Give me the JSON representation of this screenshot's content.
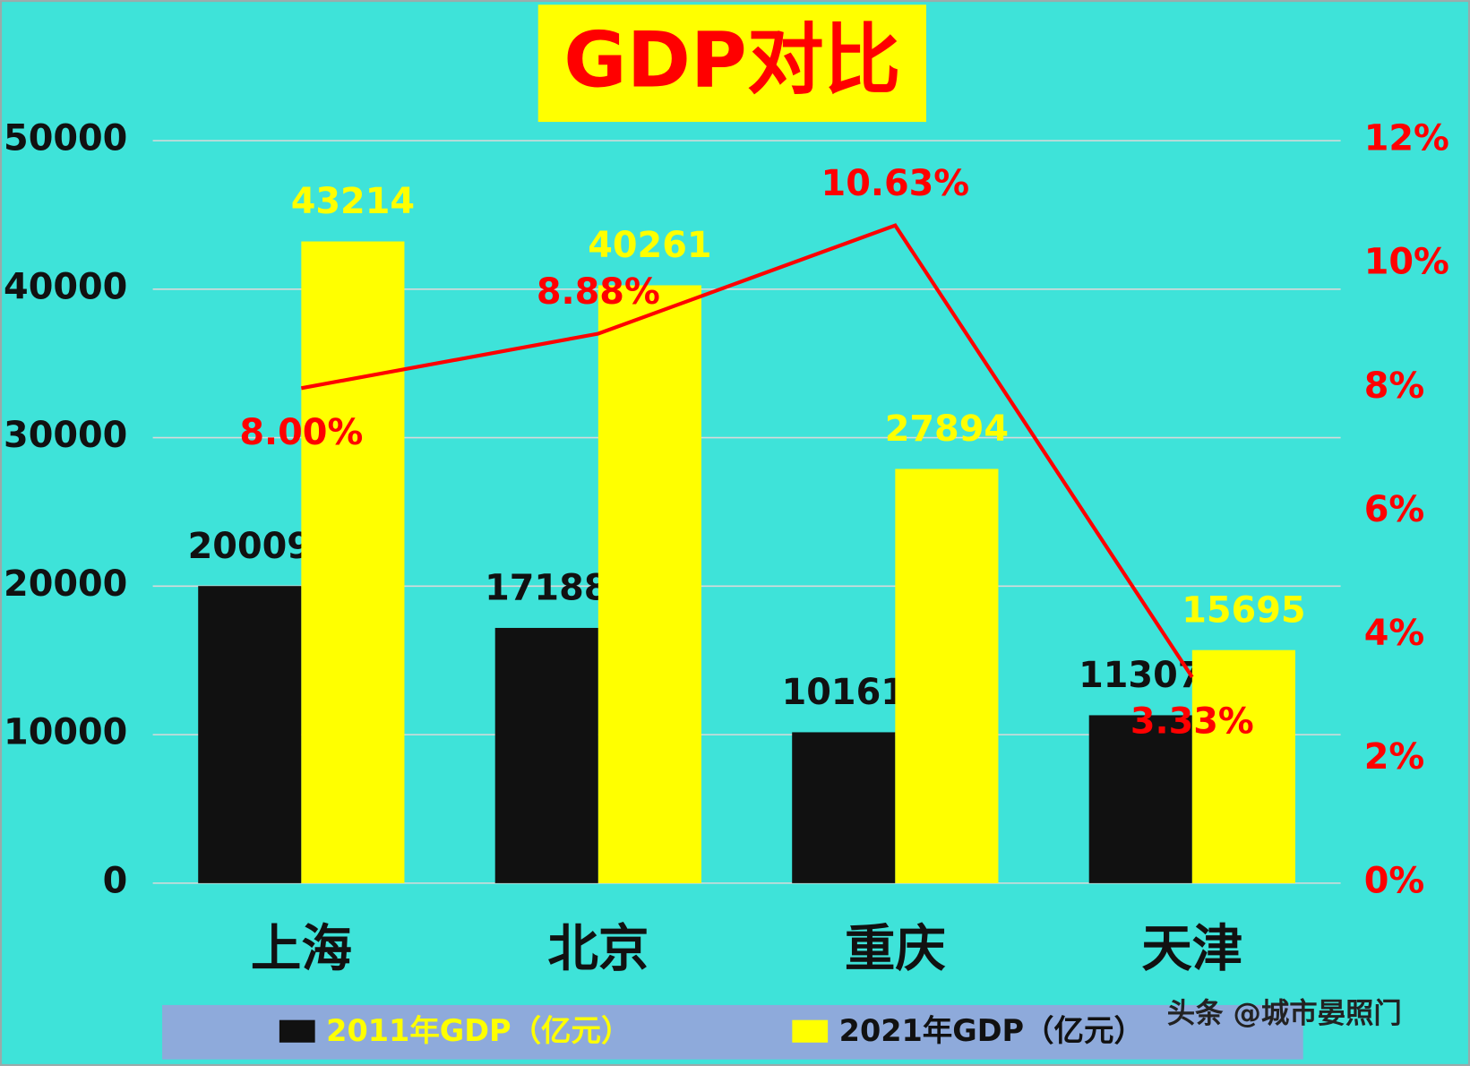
{
  "chart_data": {
    "type": "bar",
    "title": "GDP对比",
    "categories": [
      "上海",
      "北京",
      "重庆",
      "天津"
    ],
    "series": [
      {
        "name": "2011年GDP（亿元）",
        "color": "#111111",
        "values": [
          20009,
          17188,
          10161,
          11307
        ]
      },
      {
        "name": "2021年GDP（亿元）",
        "color": "#ffff00",
        "values": [
          43214,
          40261,
          27894,
          15695
        ]
      },
      {
        "type": "line",
        "axis": "y2",
        "color": "#ff0000",
        "values": [
          8.0,
          8.88,
          10.63,
          3.33
        ],
        "value_labels": [
          "8.00%",
          "8.88%",
          "10.63%",
          "3.33%"
        ]
      }
    ],
    "ylim": [
      0,
      50000
    ],
    "yticks": [
      0,
      10000,
      20000,
      30000,
      40000,
      50000
    ],
    "y2lim": [
      0,
      12
    ],
    "y2ticks": [
      {
        "value": 0,
        "label": "0%"
      },
      {
        "value": 2,
        "label": "2%"
      },
      {
        "value": 4,
        "label": "4%"
      },
      {
        "value": 6,
        "label": "6%"
      },
      {
        "value": 8,
        "label": "8%"
      },
      {
        "value": 10,
        "label": "10%"
      },
      {
        "value": 12,
        "label": "12%"
      }
    ],
    "grid": true,
    "legend": "bottom",
    "watermark": "头条 @城市晏照门"
  }
}
